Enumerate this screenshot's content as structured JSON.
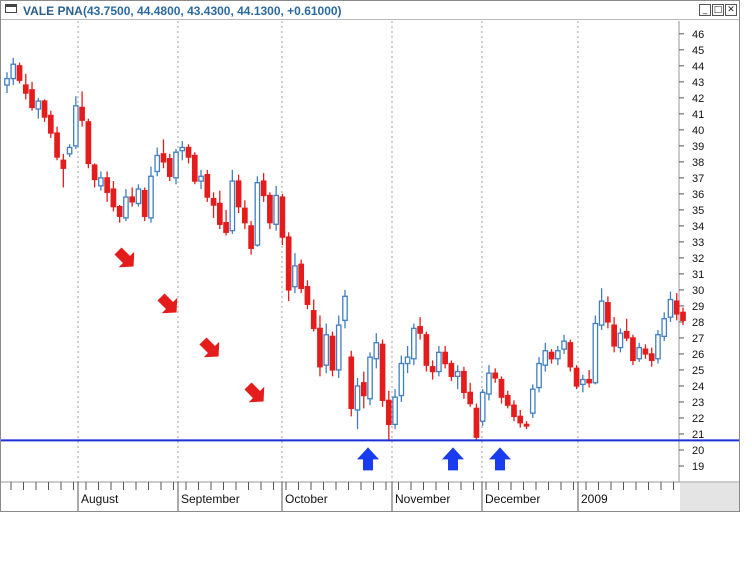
{
  "window": {
    "symbol": "VALE PNA",
    "ohlc_text": "(43.7500, 44.4800, 43.4300, 44.1300, +0.61000)",
    "btn_minimize": "_",
    "btn_restore": "□",
    "btn_close": "✕"
  },
  "colors": {
    "up": "#3f7fc3",
    "down": "#e51c1c",
    "support": "#1f2fd6",
    "arrow_up": "#1a3cf0",
    "arrow_down": "#e51c1c"
  },
  "chart_data": {
    "type": "candlestick",
    "title": "VALE PNA",
    "ylim": [
      18,
      46.8
    ],
    "y_ticks": [
      19,
      20,
      21,
      22,
      23,
      24,
      25,
      26,
      27,
      28,
      29,
      30,
      31,
      32,
      33,
      34,
      35,
      36,
      37,
      38,
      39,
      40,
      41,
      42,
      43,
      44,
      45,
      46
    ],
    "x_labels": [
      "August",
      "September",
      "October",
      "November",
      "December",
      "2009"
    ],
    "support_level": 20.6,
    "support_lows": [
      20.6,
      20.6,
      21.3
    ],
    "down_arrows": 4,
    "candles": [
      [
        42.8,
        43.6,
        42.3,
        43.2
      ],
      [
        43.2,
        44.5,
        42.8,
        44.1
      ],
      [
        44.0,
        44.2,
        42.9,
        43.1
      ],
      [
        42.8,
        43.5,
        41.9,
        42.3
      ],
      [
        42.5,
        43.0,
        41.2,
        41.4
      ],
      [
        41.3,
        42.0,
        40.7,
        41.8
      ],
      [
        41.8,
        41.9,
        40.5,
        40.8
      ],
      [
        40.9,
        41.2,
        39.5,
        39.8
      ],
      [
        39.8,
        40.2,
        38.1,
        38.3
      ],
      [
        38.1,
        38.5,
        36.4,
        37.6
      ],
      [
        38.5,
        39.1,
        38.3,
        38.9
      ],
      [
        39.0,
        42.1,
        38.8,
        41.5
      ],
      [
        41.4,
        42.4,
        40.2,
        40.6
      ],
      [
        40.5,
        40.7,
        37.6,
        37.9
      ],
      [
        37.8,
        37.9,
        36.4,
        36.9
      ],
      [
        36.5,
        37.4,
        36.2,
        37.0
      ],
      [
        37.0,
        37.4,
        35.5,
        36.1
      ],
      [
        36.3,
        36.8,
        34.9,
        35.2
      ],
      [
        35.2,
        35.3,
        34.2,
        34.6
      ],
      [
        34.5,
        36.3,
        34.3,
        35.8
      ],
      [
        35.8,
        36.4,
        35.2,
        35.5
      ],
      [
        35.4,
        36.6,
        35.2,
        36.3
      ],
      [
        36.2,
        36.4,
        34.3,
        34.6
      ],
      [
        34.5,
        37.7,
        34.2,
        37.1
      ],
      [
        37.4,
        38.9,
        37.1,
        38.4
      ],
      [
        38.5,
        39.4,
        37.6,
        38.0
      ],
      [
        38.2,
        38.5,
        36.8,
        37.1
      ],
      [
        37.0,
        38.8,
        36.6,
        38.6
      ],
      [
        38.7,
        39.3,
        38.1,
        38.9
      ],
      [
        38.9,
        39.1,
        37.9,
        38.3
      ],
      [
        38.4,
        38.6,
        36.6,
        36.8
      ],
      [
        36.8,
        37.5,
        36.3,
        37.1
      ],
      [
        37.2,
        37.5,
        35.5,
        35.8
      ],
      [
        35.7,
        36.1,
        34.5,
        35.3
      ],
      [
        35.4,
        36.2,
        33.8,
        34.1
      ],
      [
        34.2,
        35.0,
        33.4,
        33.6
      ],
      [
        33.7,
        37.5,
        33.5,
        36.8
      ],
      [
        36.8,
        37.2,
        34.8,
        35.2
      ],
      [
        35.1,
        35.6,
        33.8,
        34.2
      ],
      [
        34.0,
        34.3,
        32.2,
        32.6
      ],
      [
        32.8,
        37.1,
        32.7,
        36.7
      ],
      [
        36.8,
        37.3,
        35.5,
        35.9
      ],
      [
        35.9,
        36.1,
        33.8,
        34.2
      ],
      [
        34.1,
        36.5,
        33.7,
        35.9
      ],
      [
        35.8,
        36.0,
        32.8,
        33.3
      ],
      [
        33.3,
        33.6,
        29.3,
        30.0
      ],
      [
        30.2,
        32.3,
        29.8,
        31.5
      ],
      [
        31.6,
        31.9,
        29.8,
        30.1
      ],
      [
        30.2,
        30.6,
        28.8,
        29.1
      ],
      [
        28.7,
        29.4,
        27.4,
        27.6
      ],
      [
        27.6,
        28.4,
        24.6,
        25.2
      ],
      [
        25.3,
        27.9,
        24.8,
        27.2
      ],
      [
        27.1,
        27.4,
        24.6,
        25.0
      ],
      [
        25.0,
        28.4,
        24.5,
        27.8
      ],
      [
        28.1,
        30.0,
        27.6,
        29.6
      ],
      [
        25.8,
        26.2,
        22.1,
        22.6
      ],
      [
        22.5,
        24.5,
        21.3,
        24.0
      ],
      [
        24.2,
        24.9,
        22.6,
        23.4
      ],
      [
        23.2,
        26.1,
        22.8,
        25.8
      ],
      [
        25.7,
        27.3,
        25.1,
        26.7
      ],
      [
        26.6,
        26.9,
        22.7,
        23.1
      ],
      [
        23.1,
        23.7,
        20.6,
        21.6
      ],
      [
        21.6,
        23.8,
        21.3,
        23.3
      ],
      [
        23.4,
        25.9,
        23.0,
        25.4
      ],
      [
        25.4,
        26.5,
        24.8,
        25.8
      ],
      [
        25.7,
        27.9,
        25.3,
        27.6
      ],
      [
        27.7,
        28.3,
        26.9,
        27.3
      ],
      [
        27.2,
        27.4,
        24.9,
        25.3
      ],
      [
        25.2,
        25.6,
        24.4,
        24.9
      ],
      [
        24.9,
        26.5,
        24.6,
        26.1
      ],
      [
        26.1,
        26.5,
        25.1,
        25.4
      ],
      [
        25.4,
        25.6,
        24.3,
        24.6
      ],
      [
        24.6,
        25.3,
        23.8,
        24.9
      ],
      [
        24.9,
        25.2,
        23.2,
        23.6
      ],
      [
        23.6,
        24.2,
        22.7,
        22.9
      ],
      [
        22.6,
        22.9,
        20.6,
        20.8
      ],
      [
        21.8,
        23.8,
        21.5,
        23.6
      ],
      [
        23.5,
        25.3,
        23.1,
        24.8
      ],
      [
        24.8,
        25.1,
        24.2,
        24.5
      ],
      [
        24.4,
        24.6,
        22.9,
        23.3
      ],
      [
        23.4,
        23.7,
        22.6,
        22.8
      ],
      [
        22.8,
        23.1,
        21.8,
        22.1
      ],
      [
        22.1,
        22.5,
        21.4,
        21.7
      ],
      [
        21.6,
        21.8,
        21.3,
        21.5
      ],
      [
        22.3,
        24.1,
        22.0,
        23.8
      ],
      [
        23.9,
        25.8,
        23.6,
        25.4
      ],
      [
        25.3,
        26.7,
        24.9,
        26.2
      ],
      [
        26.1,
        26.3,
        25.4,
        25.7
      ],
      [
        25.7,
        26.5,
        25.3,
        26.2
      ],
      [
        26.3,
        27.2,
        26.0,
        26.8
      ],
      [
        26.7,
        26.9,
        24.9,
        25.2
      ],
      [
        25.1,
        25.3,
        23.8,
        24.0
      ],
      [
        24.1,
        24.7,
        23.6,
        24.4
      ],
      [
        24.4,
        25.0,
        23.9,
        24.2
      ],
      [
        24.2,
        28.4,
        24.1,
        27.9
      ],
      [
        27.8,
        30.1,
        27.5,
        29.3
      ],
      [
        29.2,
        29.6,
        27.6,
        28.0
      ],
      [
        27.8,
        28.3,
        26.1,
        26.5
      ],
      [
        26.4,
        27.6,
        26.1,
        27.3
      ],
      [
        27.4,
        28.2,
        26.8,
        27.0
      ],
      [
        27.0,
        27.2,
        25.3,
        25.6
      ],
      [
        25.7,
        26.7,
        25.5,
        26.4
      ],
      [
        26.3,
        26.6,
        25.7,
        26.0
      ],
      [
        26.0,
        26.4,
        25.2,
        25.6
      ],
      [
        25.7,
        27.5,
        25.4,
        27.2
      ],
      [
        27.1,
        28.6,
        26.8,
        28.2
      ],
      [
        28.3,
        29.9,
        28.0,
        29.4
      ],
      [
        29.3,
        29.8,
        28.1,
        28.5
      ],
      [
        28.6,
        28.9,
        27.8,
        28.1
      ]
    ]
  }
}
